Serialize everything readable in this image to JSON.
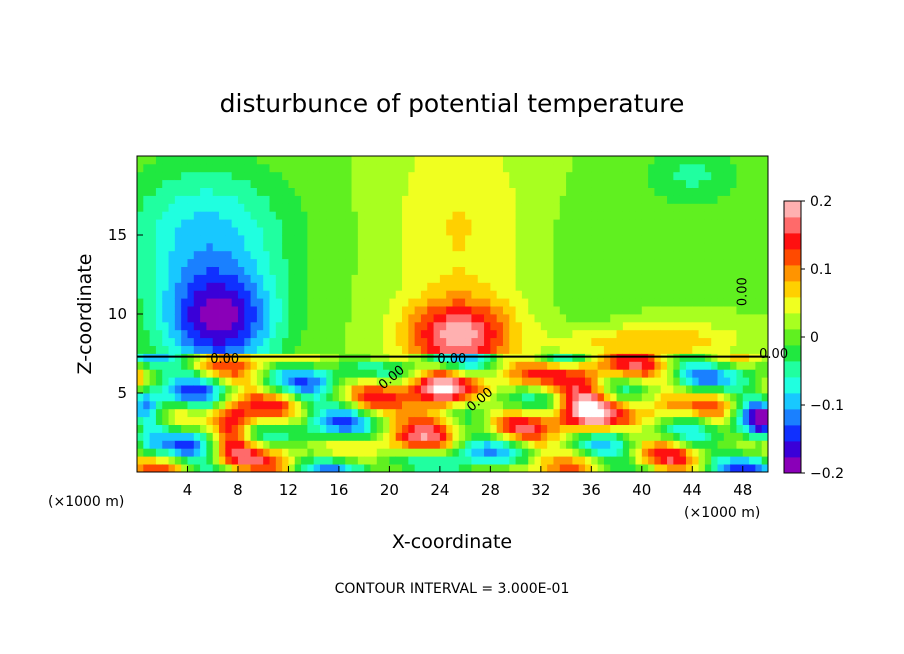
{
  "chart_data": {
    "type": "heatmap",
    "title": "disturbunce of potential temperature",
    "xlabel": "X-coordinate",
    "ylabel": "Z-coordinate",
    "x_unit_left": "(×1000 m)",
    "x_unit_right": "(×1000 m)",
    "xlim": [
      0,
      50
    ],
    "ylim": [
      0,
      20
    ],
    "x_ticks": [
      4,
      8,
      12,
      16,
      20,
      24,
      28,
      32,
      36,
      40,
      44,
      48
    ],
    "y_ticks": [
      5,
      10,
      15
    ],
    "colorbar": {
      "range": [
        -0.2,
        0.2
      ],
      "ticks": [
        0.2,
        0.1,
        0,
        -0.1,
        -0.2
      ],
      "tick_labels": [
        "0.2",
        "0.1",
        "0",
        "−0.1",
        "−0.2"
      ],
      "colors": [
        "#8a00b8",
        "#3a00d8",
        "#1030ff",
        "#1a80ff",
        "#18c8ff",
        "#20ffe0",
        "#20ffa0",
        "#20e840",
        "#60f020",
        "#a8ff20",
        "#f0ff20",
        "#ffd000",
        "#ff9400",
        "#ff4a00",
        "#ff1010",
        "#ff6a6a",
        "#ffb0b0"
      ]
    },
    "contour_labels": [
      "0.00",
      "0.00",
      "0.00",
      "0.00",
      "0.00",
      "0.00"
    ],
    "footer": "CONTOUR INTERVAL = 3.000E-01"
  }
}
